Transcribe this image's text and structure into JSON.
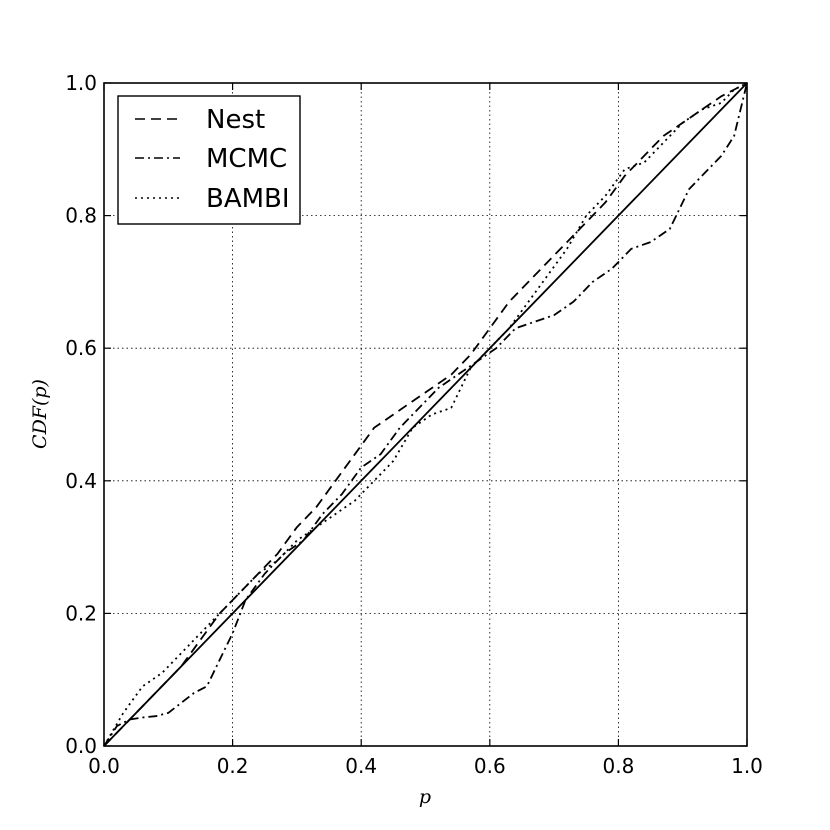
{
  "chart_data": {
    "type": "line",
    "xlabel": "p",
    "ylabel": "CDF(p)",
    "xlim": [
      0.0,
      1.0
    ],
    "ylim": [
      0.0,
      1.0
    ],
    "xticks": [
      "0.0",
      "0.2",
      "0.4",
      "0.6",
      "0.8",
      "1.0"
    ],
    "yticks": [
      "0.0",
      "0.2",
      "0.4",
      "0.6",
      "0.8",
      "1.0"
    ],
    "grid": true,
    "legend": {
      "position": "top-left"
    },
    "series": [
      {
        "name": "Nest",
        "style": "dashed",
        "x": [
          0.0,
          0.03,
          0.06,
          0.09,
          0.12,
          0.15,
          0.18,
          0.21,
          0.24,
          0.27,
          0.3,
          0.33,
          0.36,
          0.39,
          0.42,
          0.45,
          0.48,
          0.51,
          0.54,
          0.57,
          0.6,
          0.63,
          0.66,
          0.69,
          0.72,
          0.75,
          0.78,
          0.81,
          0.84,
          0.87,
          0.9,
          0.93,
          0.96,
          1.0
        ],
        "y": [
          0.0,
          0.03,
          0.06,
          0.09,
          0.12,
          0.16,
          0.2,
          0.23,
          0.26,
          0.29,
          0.33,
          0.36,
          0.4,
          0.44,
          0.48,
          0.5,
          0.52,
          0.54,
          0.56,
          0.59,
          0.63,
          0.67,
          0.7,
          0.73,
          0.76,
          0.79,
          0.82,
          0.86,
          0.89,
          0.92,
          0.94,
          0.96,
          0.98,
          1.0
        ]
      },
      {
        "name": "MCMC",
        "style": "dashdot",
        "x": [
          0.0,
          0.02,
          0.04,
          0.06,
          0.08,
          0.1,
          0.12,
          0.14,
          0.16,
          0.18,
          0.2,
          0.22,
          0.25,
          0.28,
          0.31,
          0.34,
          0.37,
          0.4,
          0.43,
          0.46,
          0.49,
          0.52,
          0.55,
          0.58,
          0.61,
          0.64,
          0.67,
          0.7,
          0.73,
          0.76,
          0.79,
          0.82,
          0.85,
          0.88,
          0.91,
          0.94,
          0.96,
          0.98,
          1.0
        ],
        "y": [
          0.0,
          0.03,
          0.04,
          0.043,
          0.045,
          0.05,
          0.065,
          0.08,
          0.09,
          0.13,
          0.17,
          0.22,
          0.26,
          0.29,
          0.31,
          0.35,
          0.38,
          0.42,
          0.44,
          0.48,
          0.51,
          0.54,
          0.56,
          0.58,
          0.6,
          0.63,
          0.64,
          0.65,
          0.67,
          0.7,
          0.72,
          0.75,
          0.76,
          0.78,
          0.84,
          0.87,
          0.89,
          0.92,
          1.0
        ]
      },
      {
        "name": "BAMBI",
        "style": "dotted",
        "x": [
          0.0,
          0.03,
          0.06,
          0.09,
          0.12,
          0.15,
          0.18,
          0.21,
          0.24,
          0.27,
          0.3,
          0.33,
          0.36,
          0.39,
          0.42,
          0.45,
          0.48,
          0.51,
          0.54,
          0.57,
          0.6,
          0.63,
          0.66,
          0.69,
          0.72,
          0.75,
          0.78,
          0.81,
          0.84,
          0.87,
          0.9,
          0.93,
          0.96,
          0.98,
          1.0
        ],
        "y": [
          0.0,
          0.05,
          0.09,
          0.11,
          0.14,
          0.17,
          0.2,
          0.23,
          0.26,
          0.28,
          0.31,
          0.33,
          0.35,
          0.37,
          0.4,
          0.43,
          0.48,
          0.5,
          0.51,
          0.57,
          0.6,
          0.63,
          0.67,
          0.71,
          0.75,
          0.8,
          0.83,
          0.87,
          0.88,
          0.91,
          0.94,
          0.96,
          0.97,
          0.99,
          1.0
        ]
      },
      {
        "style": "solid",
        "x": [
          0.0,
          1.0
        ],
        "y": [
          0.0,
          1.0
        ]
      }
    ]
  }
}
